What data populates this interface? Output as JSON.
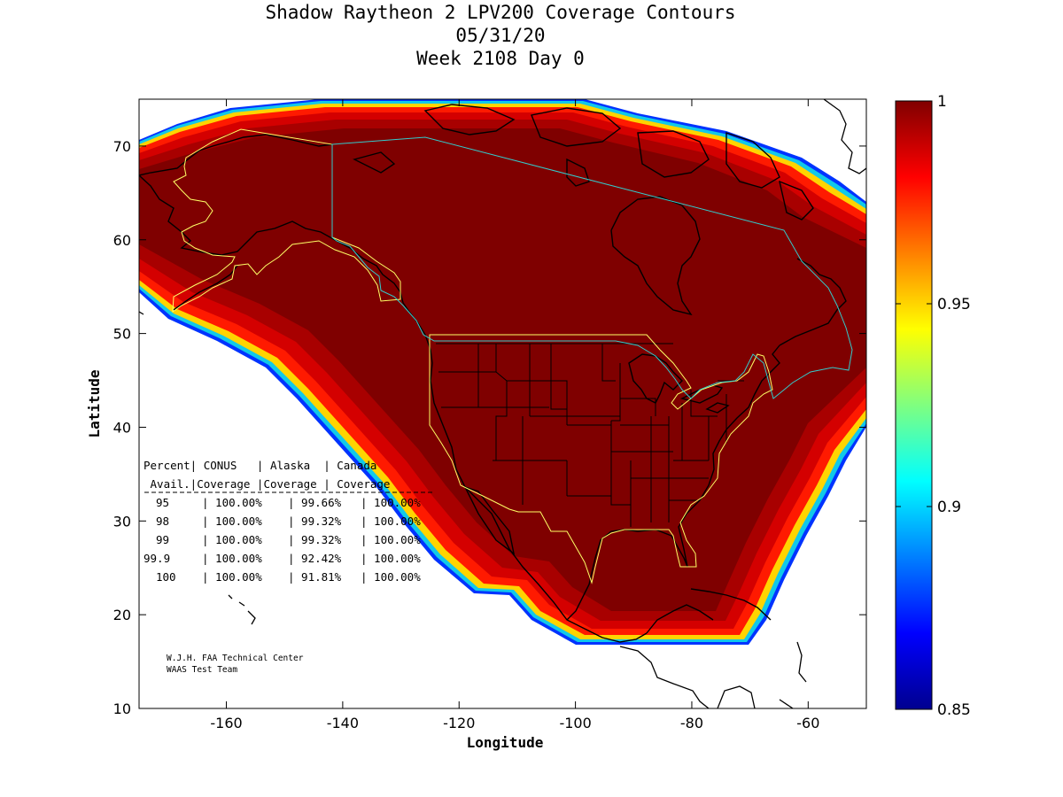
{
  "title": {
    "line1": "Shadow Raytheon 2 LPV200 Coverage Contours",
    "line2": "05/31/20",
    "line3": "Week 2108 Day 0"
  },
  "map": {
    "xlabel": "Longitude",
    "ylabel": "Latitude",
    "xlim": [
      -175,
      -50
    ],
    "ylim": [
      10,
      75
    ],
    "xticks": [
      -160,
      -140,
      -120,
      -100,
      -80,
      -60
    ],
    "yticks": [
      10,
      20,
      30,
      40,
      50,
      60,
      70
    ],
    "coverage_color": "#7f0000",
    "boundary_colors": {
      "conus_alaska": "#ffff66",
      "canada": "#33cccc",
      "coast": "#000000"
    }
  },
  "colorbar": {
    "range": [
      0.85,
      1
    ],
    "ticks": [
      "1",
      "0.95",
      "0.9",
      "0.85"
    ],
    "tick_values": [
      1,
      0.95,
      0.9,
      0.85
    ]
  },
  "table": {
    "header1": "Percent| CONUS   | Alaska  | Canada",
    "header2": " Avail.|Coverage |Coverage | Coverage",
    "rows": [
      {
        "avail": "95",
        "conus": "100.00%",
        "alaska": "99.66%",
        "canada": "100.00%"
      },
      {
        "avail": "98",
        "conus": "100.00%",
        "alaska": "99.32%",
        "canada": "100.00%"
      },
      {
        "avail": "99",
        "conus": "100.00%",
        "alaska": "99.32%",
        "canada": "100.00%"
      },
      {
        "avail": "99.9",
        "conus": "100.00%",
        "alaska": "92.42%",
        "canada": "100.00%"
      },
      {
        "avail": "100",
        "conus": "100.00%",
        "alaska": "91.81%",
        "canada": "100.00%"
      }
    ]
  },
  "credit": {
    "line1": "W.J.H. FAA Technical Center",
    "line2": "WAAS Test Team"
  }
}
